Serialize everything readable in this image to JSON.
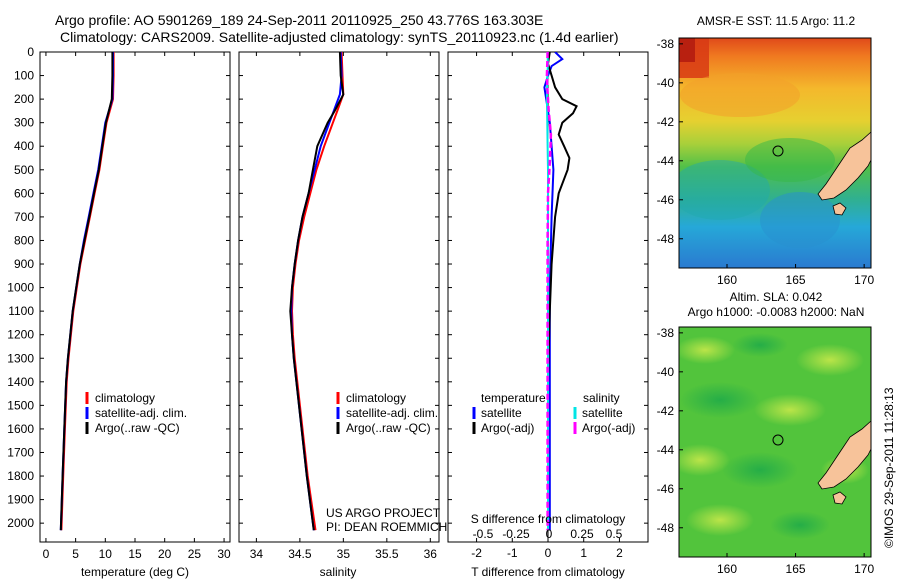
{
  "header": {
    "title_line1": "Argo profile: AO 5901269_189 24-Sep-2011 20110925_250 43.776S 163.303E",
    "title_line2": "Climatology: CARS2009. Satellite-adjusted climatology: synTS_20110923.nc (1.4d earlier)"
  },
  "colors": {
    "climatology": "#ff0000",
    "satellite": "#0000ff",
    "argo": "#000000",
    "sal_satellite": "#00e5e5",
    "sal_argo": "#ff00ff",
    "land": "#f7c39a"
  },
  "chart_data": [
    {
      "type": "line",
      "panel": "temperature",
      "xlabel": "temperature (deg C)",
      "ylabel": "",
      "xlim": [
        -1,
        31
      ],
      "ylim": [
        2080,
        0
      ],
      "xticks": [
        0,
        5,
        10,
        15,
        20,
        25,
        30
      ],
      "yticks": [
        0,
        100,
        200,
        300,
        400,
        500,
        600,
        700,
        800,
        900,
        1000,
        1100,
        1200,
        1300,
        1400,
        1500,
        1600,
        1700,
        1800,
        1900,
        2000
      ],
      "legend": {
        "position": "lower-right",
        "entries": [
          "climatology",
          "satellite-adj. clim.",
          "Argo(..raw -QC)"
        ]
      },
      "series": [
        {
          "name": "climatology",
          "color": "climatology",
          "depth": [
            0,
            100,
            200,
            300,
            400,
            500,
            600,
            700,
            800,
            900,
            1000,
            1100,
            1200,
            1300,
            1400,
            1600,
            1800,
            2030
          ],
          "values": [
            11.4,
            11.4,
            11.3,
            10.2,
            9.6,
            9.0,
            8.2,
            7.4,
            6.6,
            5.8,
            5.2,
            4.6,
            4.2,
            3.8,
            3.5,
            3.2,
            2.9,
            2.6
          ]
        },
        {
          "name": "satellite-adj. clim.",
          "color": "satellite",
          "depth": [
            0,
            100,
            200,
            300,
            400,
            500,
            600,
            700,
            800,
            900,
            1000,
            1100,
            1200,
            1300,
            1400,
            1600,
            1800,
            2030
          ],
          "values": [
            11.3,
            11.3,
            11.2,
            10.0,
            9.4,
            8.8,
            8.0,
            7.2,
            6.4,
            5.7,
            5.1,
            4.5,
            4.1,
            3.7,
            3.4,
            3.1,
            2.8,
            2.5
          ]
        },
        {
          "name": "Argo(..raw -QC)",
          "color": "argo",
          "depth": [
            0,
            100,
            200,
            300,
            400,
            500,
            600,
            700,
            800,
            900,
            1000,
            1100,
            1200,
            1300,
            1400,
            1600,
            1800,
            2030
          ],
          "values": [
            11.2,
            11.2,
            11.1,
            10.1,
            9.5,
            8.9,
            8.1,
            7.3,
            6.5,
            5.7,
            5.1,
            4.5,
            4.1,
            3.7,
            3.4,
            3.1,
            2.8,
            2.5
          ]
        }
      ]
    },
    {
      "type": "line",
      "panel": "salinity",
      "xlabel": "salinity",
      "xlim": [
        33.8,
        36.1
      ],
      "ylim": [
        2080,
        0
      ],
      "xticks": [
        34,
        34.5,
        35,
        35.5,
        36
      ],
      "legend": {
        "position": "lower-right",
        "entries": [
          "climatology",
          "satellite-adj. clim.",
          "Argo(..raw -QC)"
        ]
      },
      "annotation": [
        "US ARGO PROJECT",
        "PI: DEAN ROEMMICH"
      ],
      "series": [
        {
          "name": "climatology",
          "color": "climatology",
          "depth": [
            0,
            100,
            180,
            250,
            300,
            400,
            500,
            600,
            700,
            800,
            900,
            1000,
            1100,
            1200,
            1300,
            1400,
            1600,
            1800,
            2030
          ],
          "values": [
            34.98,
            34.99,
            35.0,
            34.93,
            34.88,
            34.78,
            34.69,
            34.62,
            34.55,
            34.49,
            34.45,
            34.42,
            34.41,
            34.42,
            34.44,
            34.47,
            34.53,
            34.59,
            34.68
          ]
        },
        {
          "name": "satellite-adj. clim.",
          "color": "satellite",
          "depth": [
            0,
            100,
            180,
            250,
            300,
            400,
            500,
            600,
            700,
            800,
            900,
            1000,
            1100,
            1200,
            1300,
            1400,
            1600,
            1800,
            2030
          ],
          "values": [
            34.97,
            34.98,
            34.96,
            34.89,
            34.84,
            34.74,
            34.67,
            34.6,
            34.53,
            34.48,
            34.44,
            34.41,
            34.4,
            34.41,
            34.43,
            34.46,
            34.52,
            34.58,
            34.66
          ]
        },
        {
          "name": "Argo(..raw -QC)",
          "color": "argo",
          "depth": [
            0,
            100,
            180,
            250,
            300,
            400,
            500,
            600,
            700,
            800,
            900,
            1000,
            1100,
            1200,
            1300,
            1400,
            1600,
            1800,
            2030
          ],
          "values": [
            34.96,
            34.97,
            35.0,
            34.9,
            34.82,
            34.7,
            34.65,
            34.6,
            34.53,
            34.48,
            34.44,
            34.41,
            34.39,
            34.41,
            34.43,
            34.46,
            34.52,
            34.58,
            34.66
          ]
        }
      ]
    },
    {
      "type": "line",
      "panel": "difference",
      "xlabel": "T difference from climatology",
      "xlabel_top": "S difference from climatology",
      "xlim": [
        -2.8,
        2.8
      ],
      "ylim": [
        2080,
        0
      ],
      "xticks": [
        -2,
        -1,
        0,
        1,
        2
      ],
      "xticks_secondary": [
        "-0.5",
        "-0.25",
        "0",
        "0.25",
        "0.5"
      ],
      "legend_temperature": {
        "title": "temperature",
        "entries": [
          "satellite",
          "Argo(-adj)"
        ]
      },
      "legend_salinity": {
        "title": "salinity",
        "entries": [
          "satellite",
          "Argo(-adj)"
        ]
      },
      "series": [
        {
          "name": "T satellite",
          "color": "satellite",
          "depth": [
            0,
            30,
            60,
            100,
            150,
            200,
            250,
            300,
            400,
            500,
            700,
            1000,
            1500,
            2030
          ],
          "values": [
            0.2,
            0.4,
            0.1,
            0.0,
            -0.1,
            -0.05,
            0.0,
            0.05,
            0.1,
            0.15,
            0.1,
            0.05,
            0.05,
            0.05
          ]
        },
        {
          "name": "T Argo(-adj)",
          "color": "argo",
          "depth": [
            0,
            50,
            100,
            150,
            200,
            230,
            260,
            300,
            350,
            400,
            450,
            500,
            600,
            700,
            900,
            1100,
            1400,
            1700,
            2030
          ],
          "values": [
            0.05,
            0.0,
            0.1,
            0.2,
            0.4,
            0.8,
            0.7,
            0.4,
            0.3,
            0.45,
            0.6,
            0.55,
            0.3,
            0.2,
            0.1,
            0.05,
            0.0,
            0.0,
            0.0
          ]
        },
        {
          "name": "S satellite",
          "color": "sal_satellite",
          "depth": [
            0,
            50,
            100,
            200,
            300,
            400,
            500,
            700,
            900,
            1200,
            1500,
            1800,
            2030
          ],
          "values": [
            -0.02,
            0.0,
            -0.02,
            -0.03,
            -0.02,
            -0.01,
            0.0,
            0.0,
            0.0,
            0.0,
            0.0,
            0.0,
            0.0
          ]
        },
        {
          "name": "S Argo(-adj)",
          "color": "sal_argo",
          "depth": [
            0,
            50,
            100,
            150,
            200,
            250,
            300,
            350,
            400,
            500,
            600,
            800,
            1000,
            1300,
            1600,
            1900,
            2030
          ],
          "values": [
            -0.01,
            -0.02,
            -0.03,
            -0.02,
            0.0,
            0.02,
            0.05,
            0.08,
            0.07,
            0.04,
            0.0,
            -0.01,
            -0.01,
            -0.01,
            -0.01,
            -0.01,
            -0.01
          ]
        }
      ]
    },
    {
      "type": "heatmap",
      "panel": "sst_map",
      "title": "AMSR-E SST: 11.5 Argo: 11.2",
      "xlim": [
        156.5,
        170.5
      ],
      "ylim": [
        -49.5,
        -37.7
      ],
      "xticks": [
        160,
        165,
        170
      ],
      "yticks": [
        -38,
        -40,
        -42,
        -44,
        -46,
        -48
      ],
      "marker": {
        "lon": 163.303,
        "lat": -43.776
      }
    },
    {
      "type": "heatmap",
      "panel": "sla_map",
      "title": "Altim. SLA: 0.042",
      "subtitle": "Argo h1000: -0.0083 h2000: NaN",
      "xlim": [
        156.5,
        170.5
      ],
      "ylim": [
        -49.5,
        -37.7
      ],
      "xticks": [
        160,
        165,
        170
      ],
      "yticks": [
        -38,
        -40,
        -42,
        -44,
        -46,
        -48
      ],
      "marker": {
        "lon": 163.303,
        "lat": -43.776
      }
    }
  ],
  "footer": {
    "stamp": "©IMOS 29-Sep-2011 11:28:13"
  }
}
